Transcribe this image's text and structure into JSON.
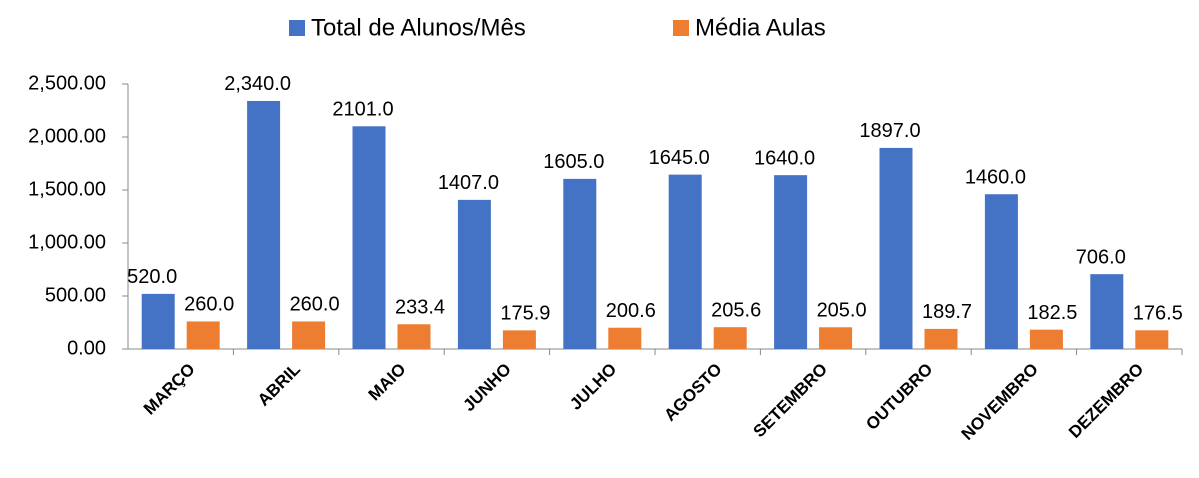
{
  "chart_data": {
    "type": "bar",
    "categories": [
      "MARÇO",
      "ABRIL",
      "MAIO",
      "JUNHO",
      "JULHO",
      "AGOSTO",
      "SETEMBRO",
      "OUTUBRO",
      "NOVEMBRO",
      "DEZEMBRO"
    ],
    "series": [
      {
        "name": "Total de Alunos/Mês",
        "color": "#4472c4",
        "values": [
          520,
          2340,
          2101,
          1407,
          1605,
          1645,
          1640,
          1897,
          1460,
          706
        ],
        "value_labels": [
          "520.0",
          "2,340.0",
          "2101.0",
          "1407.0",
          "1605.0",
          "1645.0",
          "1640.0",
          "1897.0",
          "1460.0",
          "706.0"
        ]
      },
      {
        "name": "Média Aulas",
        "color": "#ed7d31",
        "values": [
          260,
          260,
          233.4,
          175.9,
          200.6,
          205.6,
          205,
          189.7,
          182.5,
          176.5
        ],
        "value_labels": [
          "260.0",
          "260.0",
          "233.4",
          "175.9",
          "200.6",
          "205.6",
          "205.0",
          "189.7",
          "182.5",
          "176.5"
        ]
      }
    ],
    "ylim": [
      0,
      2500
    ],
    "yticks": [
      {
        "value": 0,
        "label": "0.00"
      },
      {
        "value": 500,
        "label": "500.00"
      },
      {
        "value": 1000,
        "label": "1,000.00"
      },
      {
        "value": 1500,
        "label": "1,500.00"
      },
      {
        "value": 2000,
        "label": "2,000.00"
      },
      {
        "value": 2500,
        "label": "2,500.00"
      }
    ],
    "legend": "top"
  }
}
